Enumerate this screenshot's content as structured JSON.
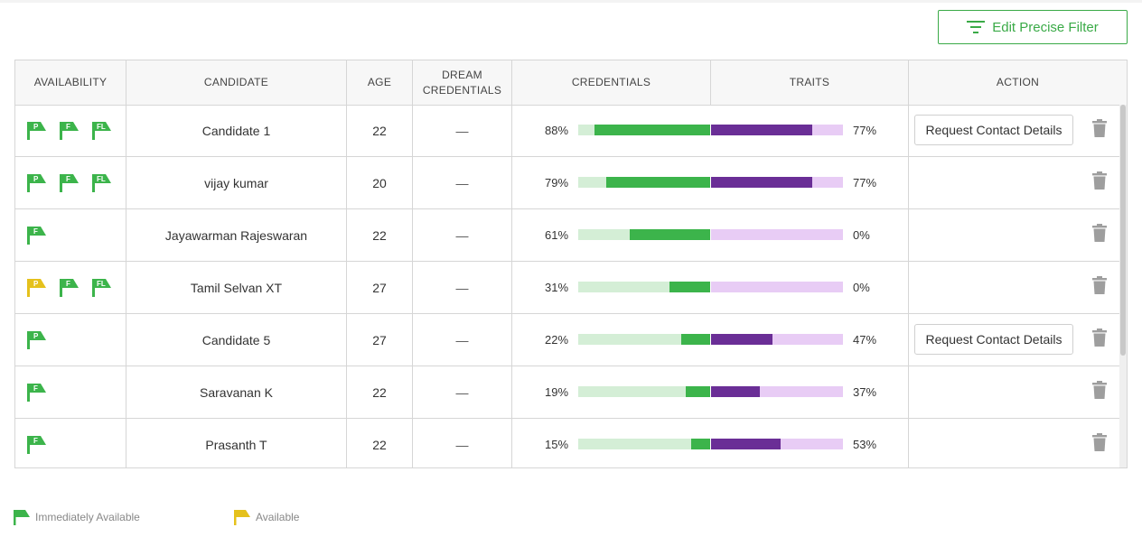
{
  "filter_button": {
    "label": "Edit Precise Filter",
    "icon": "filter-icon"
  },
  "colors": {
    "green": "#3cb44b",
    "light_green": "#d4eed6",
    "purple": "#6a2e96",
    "light_purple": "#e8ccf5",
    "yellow": "#e5c11c",
    "accent": "#3aaa47"
  },
  "headers": {
    "availability": "AVAILABILITY",
    "candidate": "CANDIDATE",
    "age": "AGE",
    "dream_line1": "DREAM",
    "dream_line2": "CREDENTIALS",
    "credentials": "CREDENTIALS",
    "traits": "TRAITS",
    "action": "ACTION"
  },
  "rows": [
    {
      "flags": [
        {
          "letter": "P",
          "status": "immediate"
        },
        {
          "letter": "F",
          "status": "immediate"
        },
        {
          "letter": "FL",
          "status": "immediate"
        }
      ],
      "name": "Candidate 1",
      "age": "22",
      "dream": "—",
      "cred_label": "88%",
      "cred": 88,
      "trait_label": "77%",
      "trait": 77,
      "action": "Request Contact Details"
    },
    {
      "flags": [
        {
          "letter": "P",
          "status": "immediate"
        },
        {
          "letter": "F",
          "status": "immediate"
        },
        {
          "letter": "FL",
          "status": "immediate"
        }
      ],
      "name": "vijay kumar",
      "age": "20",
      "dream": "—",
      "cred_label": "79%",
      "cred": 79,
      "trait_label": "77%",
      "trait": 77,
      "action": ""
    },
    {
      "flags": [
        {
          "letter": "F",
          "status": "immediate"
        }
      ],
      "name": "Jayawarman Rajeswaran",
      "age": "22",
      "dream": "—",
      "cred_label": "61%",
      "cred": 61,
      "trait_label": "0%",
      "trait": 0,
      "action": ""
    },
    {
      "flags": [
        {
          "letter": "P",
          "status": "available"
        },
        {
          "letter": "F",
          "status": "immediate"
        },
        {
          "letter": "FL",
          "status": "immediate"
        }
      ],
      "name": "Tamil Selvan XT",
      "age": "27",
      "dream": "—",
      "cred_label": "31%",
      "cred": 31,
      "trait_label": "0%",
      "trait": 0,
      "action": ""
    },
    {
      "flags": [
        {
          "letter": "P",
          "status": "immediate"
        }
      ],
      "name": "Candidate 5",
      "age": "27",
      "dream": "—",
      "cred_label": "22%",
      "cred": 22,
      "trait_label": "47%",
      "trait": 47,
      "action": "Request Contact Details"
    },
    {
      "flags": [
        {
          "letter": "F",
          "status": "immediate"
        }
      ],
      "name": "Saravanan K",
      "age": "22",
      "dream": "—",
      "cred_label": "19%",
      "cred": 19,
      "trait_label": "37%",
      "trait": 37,
      "action": ""
    },
    {
      "flags": [
        {
          "letter": "F",
          "status": "immediate"
        }
      ],
      "name": "Prasanth T",
      "age": "22",
      "dream": "—",
      "cred_label": "15%",
      "cred": 15,
      "trait_label": "53%",
      "trait": 53,
      "action": ""
    }
  ],
  "legend": {
    "immediate": "Immediately Available",
    "available": "Available"
  }
}
